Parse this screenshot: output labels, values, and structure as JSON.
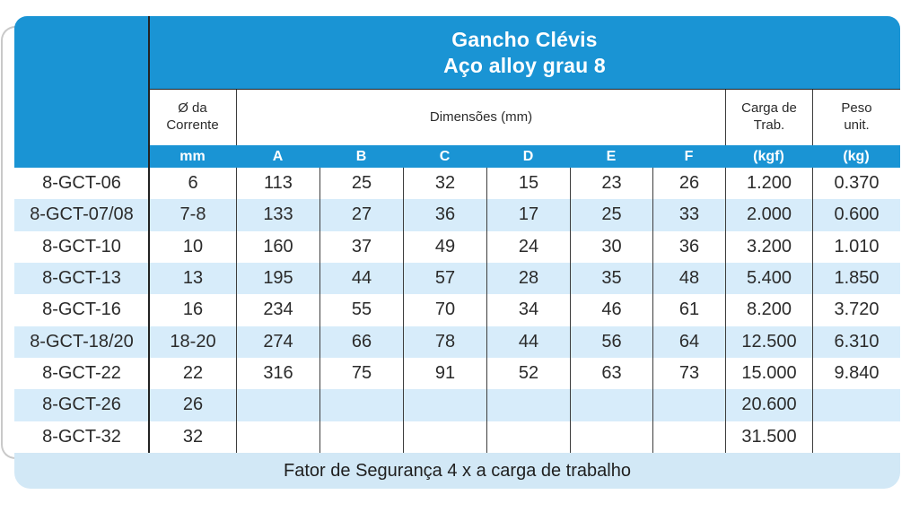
{
  "table": {
    "title_line1": "Gancho Clévis",
    "title_line2": "Aço alloy grau 8",
    "group_headers": {
      "chain_diameter": "Ø da\nCorrente",
      "dimensions": "Dimensões (mm)",
      "working_load": "Carga de\nTrab.",
      "unit_weight": "Peso\nunit."
    },
    "sub_headers": [
      "mm",
      "A",
      "B",
      "C",
      "D",
      "E",
      "F",
      "(kgf)",
      "(kg)"
    ],
    "rows": [
      {
        "code": "8-GCT-06",
        "values": [
          "6",
          "113",
          "25",
          "32",
          "15",
          "23",
          "26",
          "1.200",
          "0.370"
        ]
      },
      {
        "code": "8-GCT-07/08",
        "values": [
          "7-8",
          "133",
          "27",
          "36",
          "17",
          "25",
          "33",
          "2.000",
          "0.600"
        ]
      },
      {
        "code": "8-GCT-10",
        "values": [
          "10",
          "160",
          "37",
          "49",
          "24",
          "30",
          "36",
          "3.200",
          "1.010"
        ]
      },
      {
        "code": "8-GCT-13",
        "values": [
          "13",
          "195",
          "44",
          "57",
          "28",
          "35",
          "48",
          "5.400",
          "1.850"
        ]
      },
      {
        "code": "8-GCT-16",
        "values": [
          "16",
          "234",
          "55",
          "70",
          "34",
          "46",
          "61",
          "8.200",
          "3.720"
        ]
      },
      {
        "code": "8-GCT-18/20",
        "values": [
          "18-20",
          "274",
          "66",
          "78",
          "44",
          "56",
          "64",
          "12.500",
          "6.310"
        ]
      },
      {
        "code": "8-GCT-22",
        "values": [
          "22",
          "316",
          "75",
          "91",
          "52",
          "63",
          "73",
          "15.000",
          "9.840"
        ]
      },
      {
        "code": "8-GCT-26",
        "values": [
          "26",
          "",
          "",
          "",
          "",
          "",
          "",
          "20.600",
          ""
        ]
      },
      {
        "code": "8-GCT-32",
        "values": [
          "32",
          "",
          "",
          "",
          "",
          "",
          "",
          "31.500",
          ""
        ]
      }
    ],
    "footer": "Fator de Segurança 4 x a carga de trabalho"
  },
  "colors": {
    "primary_blue": "#1a94d4",
    "row_alt": "#d7ecfa",
    "footer_band": "#d2e8f6",
    "grid_line": "#3d3d3d",
    "heavy_line": "#222222"
  }
}
